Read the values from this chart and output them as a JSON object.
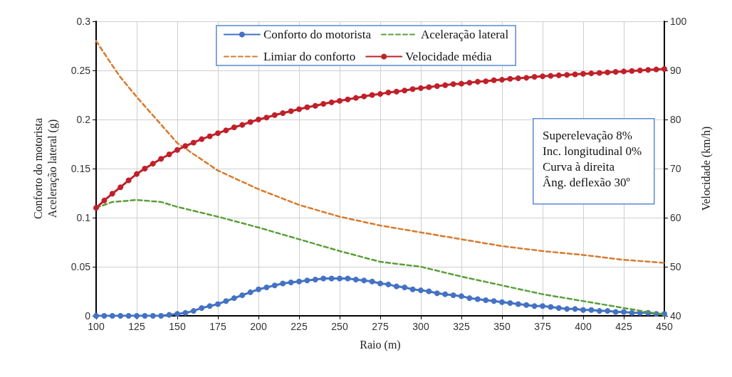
{
  "chart_data": {
    "type": "line",
    "xlabel": "Raio (m)",
    "ylabel": "Conforto do motorista\nAceleração lateral (g)",
    "y2label": "Velocidade (km/h)",
    "xlim": [
      100,
      450
    ],
    "xticks": [
      100,
      125,
      150,
      175,
      200,
      225,
      250,
      275,
      300,
      325,
      350,
      375,
      400,
      425,
      450
    ],
    "ylim": [
      0,
      0.3
    ],
    "yticks": [
      0,
      0.05,
      0.1,
      0.15,
      0.2,
      0.25,
      0.3
    ],
    "y2lim": [
      40,
      100
    ],
    "y2ticks": [
      40,
      50,
      60,
      70,
      80,
      90,
      100
    ],
    "grid": true,
    "legend": "top",
    "annotations": [
      "Superelevação 8%",
      "Inc. longitudinal 0%",
      "Curva à direita",
      "Âng. deflexão 30º"
    ],
    "series": [
      {
        "name": "Conforto do motorista",
        "color": "#4472c4",
        "marker": "circle",
        "line_style": "solid",
        "x": [
          100,
          105,
          110,
          115,
          120,
          125,
          130,
          135,
          140,
          145,
          150,
          155,
          160,
          165,
          170,
          175,
          180,
          185,
          190,
          195,
          200,
          205,
          210,
          215,
          220,
          225,
          230,
          235,
          240,
          245,
          250,
          255,
          260,
          265,
          270,
          275,
          280,
          285,
          290,
          295,
          300,
          305,
          310,
          315,
          320,
          325,
          330,
          335,
          340,
          345,
          350,
          355,
          360,
          365,
          370,
          375,
          380,
          385,
          390,
          395,
          400,
          405,
          410,
          415,
          420,
          425,
          430,
          435,
          440,
          445,
          450
        ],
        "values": [
          0,
          0,
          0,
          0,
          0,
          0,
          0,
          0,
          0,
          0.001,
          0.002,
          0.003,
          0.005,
          0.008,
          0.01,
          0.012,
          0.015,
          0.018,
          0.021,
          0.024,
          0.027,
          0.029,
          0.031,
          0.033,
          0.034,
          0.035,
          0.036,
          0.037,
          0.038,
          0.038,
          0.038,
          0.038,
          0.037,
          0.036,
          0.035,
          0.033,
          0.032,
          0.03,
          0.029,
          0.027,
          0.026,
          0.025,
          0.023,
          0.022,
          0.021,
          0.02,
          0.018,
          0.017,
          0.016,
          0.015,
          0.014,
          0.013,
          0.012,
          0.011,
          0.01,
          0.01,
          0.009,
          0.008,
          0.007,
          0.007,
          0.006,
          0.006,
          0.005,
          0.005,
          0.004,
          0.004,
          0.003,
          0.003,
          0.003,
          0.002,
          0.002
        ]
      },
      {
        "name": "Aceleração lateral",
        "color": "#5a9e3a",
        "marker": "none",
        "line_style": "dashed",
        "x": [
          100,
          110,
          125,
          140,
          150,
          175,
          200,
          225,
          250,
          275,
          300,
          325,
          350,
          375,
          400,
          425,
          450
        ],
        "values": [
          0.11,
          0.116,
          0.118,
          0.116,
          0.111,
          0.101,
          0.09,
          0.078,
          0.066,
          0.055,
          0.05,
          0.04,
          0.031,
          0.022,
          0.015,
          0.008,
          0.001
        ]
      },
      {
        "name": "Limiar do conforto",
        "color": "#d87a2e",
        "marker": "none",
        "line_style": "dashed",
        "x": [
          100,
          110,
          115,
          125,
          150,
          175,
          200,
          225,
          250,
          275,
          300,
          325,
          350,
          375,
          400,
          425,
          450
        ],
        "values": [
          0.28,
          0.255,
          0.243,
          0.223,
          0.176,
          0.148,
          0.129,
          0.113,
          0.101,
          0.092,
          0.085,
          0.078,
          0.071,
          0.066,
          0.062,
          0.057,
          0.054
        ]
      },
      {
        "name": "Velocidade média",
        "color": "#c0202a",
        "marker": "circle",
        "line_style": "solid",
        "axis": "y2",
        "x": [
          100,
          105,
          110,
          115,
          120,
          125,
          130,
          135,
          140,
          145,
          150,
          155,
          160,
          165,
          170,
          175,
          180,
          185,
          190,
          195,
          200,
          205,
          210,
          215,
          220,
          225,
          230,
          235,
          240,
          245,
          250,
          255,
          260,
          265,
          270,
          275,
          280,
          285,
          290,
          295,
          300,
          305,
          310,
          315,
          320,
          325,
          330,
          335,
          340,
          345,
          350,
          355,
          360,
          365,
          370,
          375,
          380,
          385,
          390,
          395,
          400,
          405,
          410,
          415,
          420,
          425,
          430,
          435,
          440,
          445,
          450
        ],
        "values": [
          62,
          63.5,
          64.9,
          66.2,
          67.6,
          68.9,
          70,
          71,
          72,
          72.9,
          73.8,
          74.6,
          75.3,
          76,
          76.6,
          77.2,
          77.8,
          78.4,
          78.9,
          79.5,
          80,
          80.4,
          80.9,
          81.3,
          81.7,
          82.1,
          82.5,
          82.8,
          83.2,
          83.5,
          83.8,
          84.1,
          84.4,
          84.7,
          85,
          85.2,
          85.5,
          85.7,
          85.9,
          86.2,
          86.4,
          86.6,
          86.8,
          87,
          87.2,
          87.3,
          87.5,
          87.7,
          87.8,
          88,
          88.1,
          88.3,
          88.4,
          88.5,
          88.7,
          88.8,
          88.9,
          89,
          89.1,
          89.2,
          89.3,
          89.4,
          89.5,
          89.6,
          89.7,
          89.8,
          89.9,
          90,
          90.1,
          90.2,
          90.3
        ]
      }
    ]
  }
}
